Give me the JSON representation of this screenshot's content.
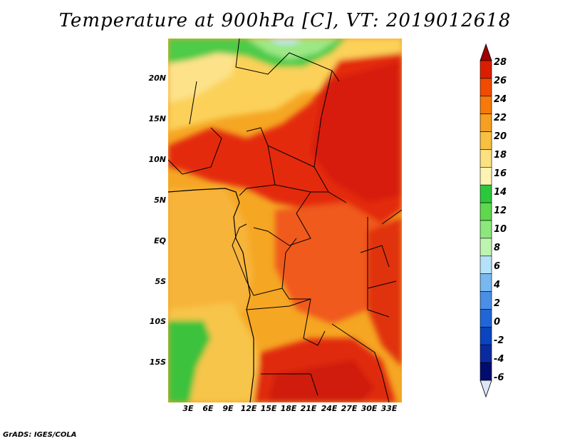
{
  "title": "Temperature at 900hPa [C], VT: 2019012618",
  "credit": "GrADS: IGES/COLA",
  "map": {
    "type": "filled-contour-map",
    "variable": "Temperature at 900hPa",
    "units": "C",
    "valid_time": "2019012618",
    "lat_labels": [
      "20N",
      "15N",
      "10N",
      "5N",
      "EQ",
      "5S",
      "10S",
      "15S"
    ],
    "lon_labels": [
      "3E",
      "6E",
      "9E",
      "12E",
      "15E",
      "18E",
      "21E",
      "24E",
      "27E",
      "30E",
      "33E"
    ]
  },
  "legend": {
    "levels": [
      "28",
      "26",
      "24",
      "22",
      "20",
      "18",
      "16",
      "14",
      "12",
      "10",
      "8",
      "6",
      "4",
      "2",
      "0",
      "-2",
      "-4",
      "-6"
    ],
    "colors": [
      "#a00000",
      "#dc1e00",
      "#f04b00",
      "#f57a0a",
      "#f7a020",
      "#f7c040",
      "#fde080",
      "#fdf4b4",
      "#2cc83c",
      "#5ed84c",
      "#8ce87c",
      "#bef4b0",
      "#b4e2f8",
      "#78b8f0",
      "#4a8ee6",
      "#2066d6",
      "#0a44be",
      "#0a2aa0",
      "#000c6e",
      "#dce6f8"
    ]
  }
}
